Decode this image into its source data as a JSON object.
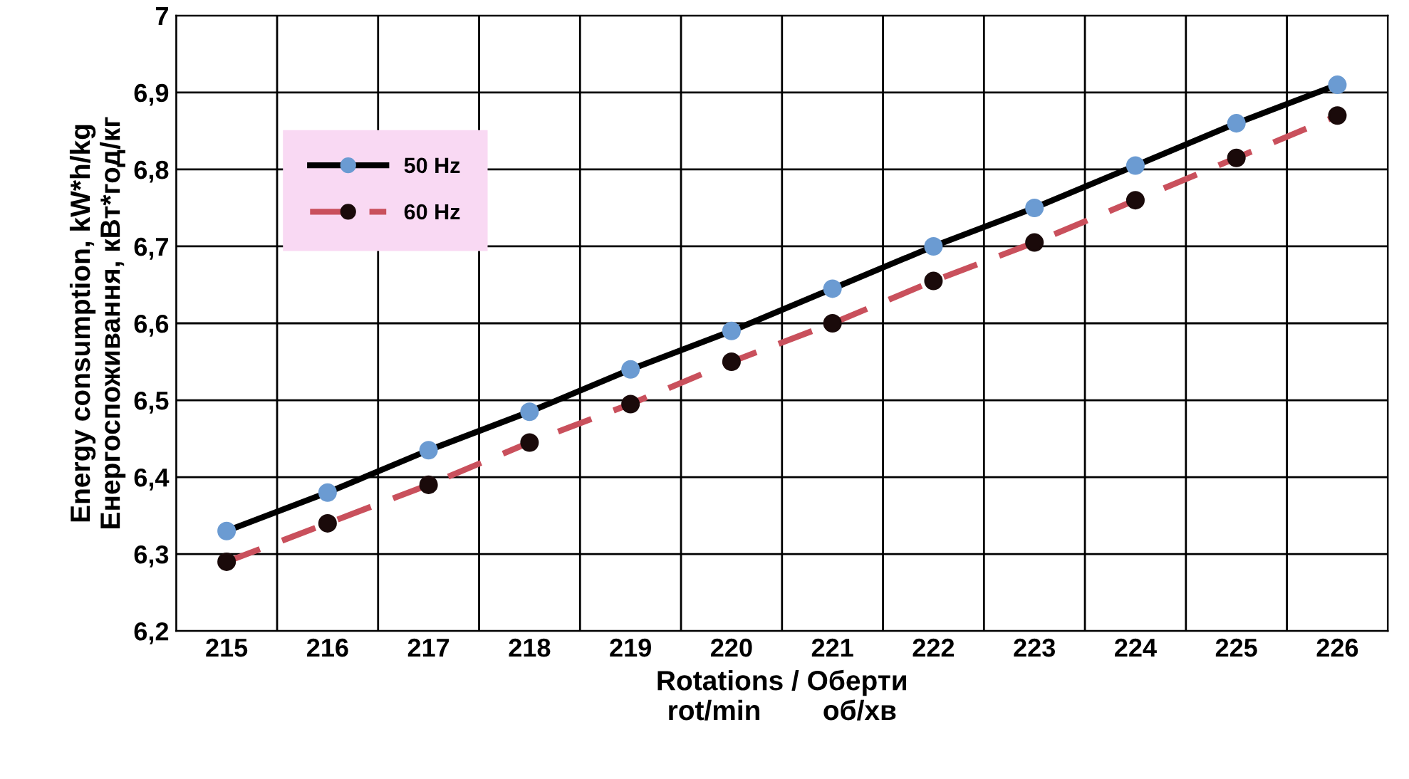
{
  "chart_data": {
    "type": "line",
    "xlabel": "Rotations / Оберти\nrot/min        об/хв",
    "ylabel": "Energy consumption, kW*h/kg\nЕнергоспоживання, кВт*год/кг",
    "categories": [
      "215",
      "216",
      "217",
      "218",
      "219",
      "220",
      "221",
      "222",
      "223",
      "224",
      "225",
      "226"
    ],
    "series": [
      {
        "name": "50 Hz",
        "color": "#000000",
        "line_style": "solid",
        "colors": [
          "#6b9bd2",
          "#6b9bd2",
          "#6b9bd2",
          "#6b9bd2",
          "#6b9bd2",
          "#6b9bd2",
          "#6b9bd2",
          "#6b9bd2",
          "#6b9bd2",
          "#6b9bd2",
          "#6b9bd2",
          "#6b9bd2"
        ],
        "values": [
          6.33,
          6.38,
          6.435,
          6.485,
          6.54,
          6.59,
          6.645,
          6.7,
          6.75,
          6.805,
          6.86,
          6.91
        ]
      },
      {
        "name": "60 Hz",
        "color": "#c9505c",
        "line_style": "dashed",
        "colors": [
          "#1a0a0a",
          "#1a0a0a",
          "#1a0a0a",
          "#1a0a0a",
          "#1a0a0a",
          "#1a0a0a",
          "#1a0a0a",
          "#1a0a0a",
          "#1a0a0a",
          "#1a0a0a",
          "#1a0a0a",
          "#1a0a0a"
        ],
        "values": [
          6.29,
          6.34,
          6.39,
          6.445,
          6.495,
          6.55,
          6.6,
          6.655,
          6.705,
          6.76,
          6.815,
          6.87
        ]
      }
    ],
    "ylim": [
      6.2,
      7
    ],
    "yticks": [
      {
        "value": 6.2,
        "label": "6,2"
      },
      {
        "value": 6.3,
        "label": "6,3"
      },
      {
        "value": 6.4,
        "label": "6,4"
      },
      {
        "value": 6.5,
        "label": "6,5"
      },
      {
        "value": 6.6,
        "label": "6,6"
      },
      {
        "value": 6.7,
        "label": "6,7"
      },
      {
        "value": 6.8,
        "label": "6,8"
      },
      {
        "value": 6.9,
        "label": "6,9"
      },
      7
    ],
    "grid": true,
    "legend": "top left",
    "marker": "circle"
  }
}
